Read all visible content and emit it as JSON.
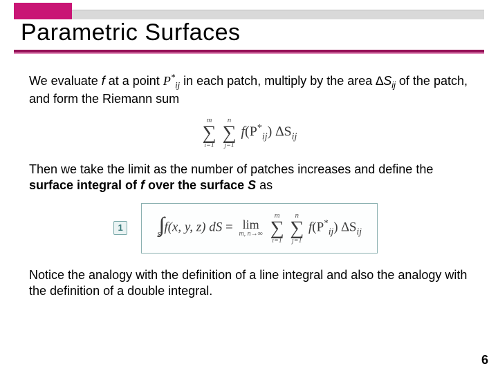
{
  "header": {
    "title": "Parametric Surfaces",
    "magenta_color": "#c91575",
    "underline_dark": "#951057",
    "underline_light": "#e089b8"
  },
  "body": {
    "p1_a": "We evaluate ",
    "p1_f": "f",
    "p1_b": " at a point ",
    "p1_pij": "P",
    "p1_pij_sub": "ij",
    "p1_star": "*",
    "p1_c": " in each patch, multiply by the area ∆",
    "p1_S": "S",
    "p1_Ssub": "ij",
    "p1_d": " of the patch, and form the Riemann sum",
    "riemann": {
      "outer_top": "m",
      "outer_bot": "i=1",
      "inner_top": "n",
      "inner_bot": "j=1",
      "term_f": "f",
      "term_arg": "(P",
      "term_argsub": "ij",
      "term_star": "*",
      "term_close": ") ∆S",
      "term_Ssub": "ij"
    },
    "p2_a": "Then we take the limit as the number of patches increases and define the ",
    "p2_bold": "surface integral of ",
    "p2_boldf": "f",
    "p2_bold2": " over the surface ",
    "p2_boldS": "S",
    "p2_b": " as",
    "badge": "1",
    "definition": {
      "lhs_f": "f",
      "lhs_args": "(x, y, z) dS",
      "eq": " = ",
      "lim": "lim",
      "lim_sub": "m, n→∞",
      "outer_top": "m",
      "outer_bot": "i=1",
      "inner_top": "n",
      "inner_bot": "j=1",
      "term_f": "f",
      "term_arg": "(P",
      "term_argsub": "ij",
      "term_star": "*",
      "term_close": ") ∆S",
      "term_Ssub": "ij",
      "int_sub": "S"
    },
    "p3": "Notice the analogy with the definition of a line integral and also the analogy with the definition of a double integral."
  },
  "page_number": "6"
}
